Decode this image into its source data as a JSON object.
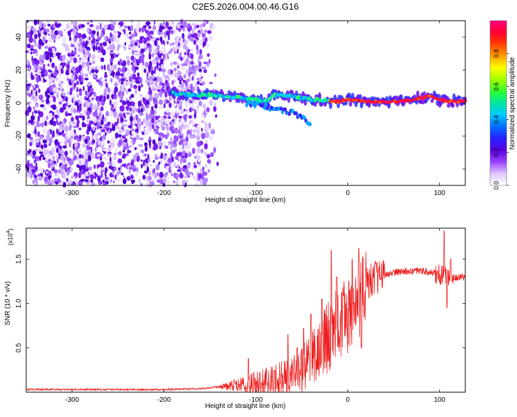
{
  "title": "C2E5.2026.004.00.46.G16",
  "chart_data": [
    {
      "type": "heatmap",
      "xlabel": "Height of straight line (km)",
      "ylabel": "Frequency (Hz)",
      "xlim": [
        -350,
        128
      ],
      "ylim": [
        -50,
        50
      ],
      "xticks": [
        -300,
        -200,
        -100,
        0,
        100
      ],
      "yticks": [
        -40,
        -20,
        0,
        20,
        40
      ],
      "colorbar": {
        "label": "Normalized spectral amplitude",
        "range": [
          0,
          1
        ],
        "ticks": [
          "0.0",
          "0.2",
          "0.4",
          "0.6",
          "0.8"
        ],
        "colors": [
          "#ffffff",
          "#e0c8ff",
          "#9a40ff",
          "#5a00e0",
          "#2a20ff",
          "#0070ff",
          "#00c8ff",
          "#00e8a0",
          "#30ff30",
          "#a0ff00",
          "#ffff00",
          "#ffa000",
          "#ff4000",
          "#ff0030",
          "#ff0080"
        ]
      },
      "ridge": [
        [
          -195,
          6
        ],
        [
          -170,
          5
        ],
        [
          -150,
          5
        ],
        [
          -130,
          4
        ],
        [
          -110,
          3
        ],
        [
          -100,
          2
        ],
        [
          -90,
          1
        ],
        [
          -80,
          5
        ],
        [
          -70,
          5
        ],
        [
          -60,
          4
        ],
        [
          -50,
          3
        ],
        [
          -40,
          2
        ],
        [
          -30,
          2
        ],
        [
          -20,
          1
        ],
        [
          -10,
          1
        ],
        [
          0,
          2
        ],
        [
          20,
          1
        ],
        [
          40,
          1
        ],
        [
          60,
          1
        ],
        [
          80,
          3
        ],
        [
          90,
          4
        ],
        [
          100,
          2
        ],
        [
          110,
          1
        ],
        [
          128,
          1
        ]
      ],
      "branch": [
        [
          -110,
          0
        ],
        [
          -90,
          -2
        ],
        [
          -75,
          -4
        ],
        [
          -60,
          -6
        ],
        [
          -50,
          -9
        ],
        [
          -40,
          -12
        ]
      ]
    },
    {
      "type": "line",
      "xlabel": "Height of straight line (km)",
      "ylabel": "SNR (10 * v/v)",
      "scale_label": "(x10",
      "scale_exp": "4",
      "xlim": [
        -350,
        128
      ],
      "ylim": [
        0,
        1.85
      ],
      "xticks": [
        -300,
        -200,
        -100,
        0,
        100
      ],
      "yticks": [
        0.5,
        1.0,
        1.5
      ],
      "ytick_labels": [
        "0.5",
        "1.0",
        "1.5"
      ],
      "color": "#ee2020",
      "envelope": [
        [
          -350,
          0.03
        ],
        [
          -200,
          0.03
        ],
        [
          -160,
          0.04
        ],
        [
          -140,
          0.06
        ],
        [
          -120,
          0.08
        ],
        [
          -100,
          0.1
        ],
        [
          -80,
          0.12
        ],
        [
          -60,
          0.18
        ],
        [
          -50,
          0.25
        ],
        [
          -40,
          0.35
        ],
        [
          -30,
          0.5
        ],
        [
          -20,
          0.65
        ],
        [
          -10,
          0.8
        ],
        [
          0,
          0.85
        ],
        [
          10,
          1.0
        ],
        [
          20,
          1.2
        ],
        [
          30,
          1.3
        ],
        [
          50,
          1.35
        ],
        [
          80,
          1.37
        ],
        [
          100,
          1.33
        ],
        [
          110,
          1.3
        ],
        [
          128,
          1.3
        ]
      ],
      "spikes": [
        [
          -108,
          0.38
        ],
        [
          -65,
          0.65
        ],
        [
          -55,
          0.5
        ],
        [
          -48,
          0.72
        ],
        [
          -40,
          0.88
        ],
        [
          -28,
          1.05
        ],
        [
          -18,
          1.6
        ],
        [
          -12,
          1.3
        ],
        [
          -5,
          1.1
        ],
        [
          5,
          1.5
        ],
        [
          12,
          1.62
        ],
        [
          15,
          0.5
        ],
        [
          18,
          0.85
        ],
        [
          105,
          1.82
        ],
        [
          108,
          0.95
        ],
        [
          112,
          1.5
        ]
      ]
    }
  ]
}
